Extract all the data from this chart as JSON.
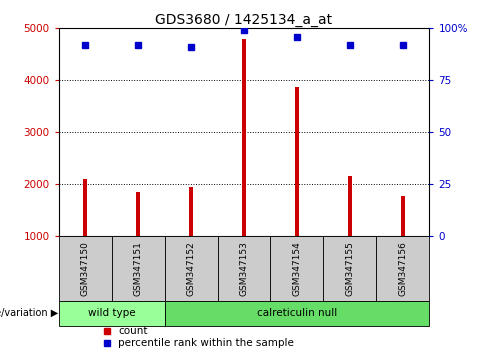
{
  "title": "GDS3680 / 1425134_a_at",
  "samples": [
    "GSM347150",
    "GSM347151",
    "GSM347152",
    "GSM347153",
    "GSM347154",
    "GSM347155",
    "GSM347156"
  ],
  "counts": [
    2100,
    1850,
    1950,
    4800,
    3870,
    2150,
    1780
  ],
  "percentiles": [
    92,
    92,
    91,
    99,
    96,
    92,
    92
  ],
  "y_min": 1000,
  "y_max": 5000,
  "y_ticks": [
    1000,
    2000,
    3000,
    4000,
    5000
  ],
  "y2_ticks": [
    0,
    25,
    50,
    75,
    100
  ],
  "y2_tick_labels": [
    "0",
    "25",
    "50",
    "75",
    "100%"
  ],
  "bar_color": "#cc0000",
  "dot_color": "#0000cc",
  "axis_label_color_left": "#cc0000",
  "axis_label_color_right": "#0000cc",
  "groups": [
    {
      "label": "wild type",
      "start": 0,
      "end": 1,
      "color": "#99ff99"
    },
    {
      "label": "calreticulin null",
      "start": 2,
      "end": 6,
      "color": "#66dd66"
    }
  ],
  "genotype_label": "genotype/variation",
  "legend_count": "count",
  "legend_percentile": "percentile rank within the sample",
  "sample_box_color": "#cccccc",
  "background_color": "#ffffff",
  "bar_width": 0.08
}
